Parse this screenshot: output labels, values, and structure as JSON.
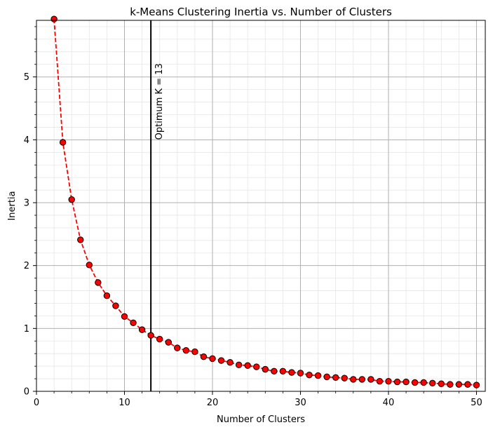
{
  "chart_data": {
    "type": "line",
    "title": "k-Means Clustering Inertia vs. Number of Clusters",
    "xlabel": "Number of Clusters",
    "ylabel": "Inertia",
    "xlim": [
      0,
      51
    ],
    "ylim": [
      0,
      5.9
    ],
    "xticks": [
      0,
      10,
      20,
      30,
      40,
      50
    ],
    "yticks": [
      0,
      1,
      2,
      3,
      4,
      5
    ],
    "grid": true,
    "series": [
      {
        "color": "#ff0000",
        "marker_face": "#ff0000",
        "marker_edge": "#000000",
        "line_style": "dashed",
        "x": [
          2,
          3,
          4,
          5,
          6,
          7,
          8,
          9,
          10,
          11,
          12,
          13,
          14,
          15,
          16,
          17,
          18,
          19,
          20,
          21,
          22,
          23,
          24,
          25,
          26,
          27,
          28,
          29,
          30,
          31,
          32,
          33,
          34,
          35,
          36,
          37,
          38,
          39,
          40,
          41,
          42,
          43,
          44,
          45,
          46,
          47,
          48,
          49,
          50
        ],
        "y": [
          5.92,
          3.96,
          3.05,
          2.41,
          2.01,
          1.73,
          1.52,
          1.36,
          1.19,
          1.09,
          0.98,
          0.89,
          0.83,
          0.78,
          0.69,
          0.65,
          0.63,
          0.55,
          0.52,
          0.49,
          0.46,
          0.42,
          0.41,
          0.39,
          0.35,
          0.32,
          0.32,
          0.3,
          0.29,
          0.26,
          0.25,
          0.23,
          0.22,
          0.21,
          0.19,
          0.19,
          0.19,
          0.16,
          0.16,
          0.15,
          0.15,
          0.14,
          0.14,
          0.13,
          0.12,
          0.11,
          0.11,
          0.11,
          0.1
        ]
      }
    ],
    "vline": {
      "x": 13,
      "color": "#000000",
      "label": "Optimum K = 13"
    }
  }
}
